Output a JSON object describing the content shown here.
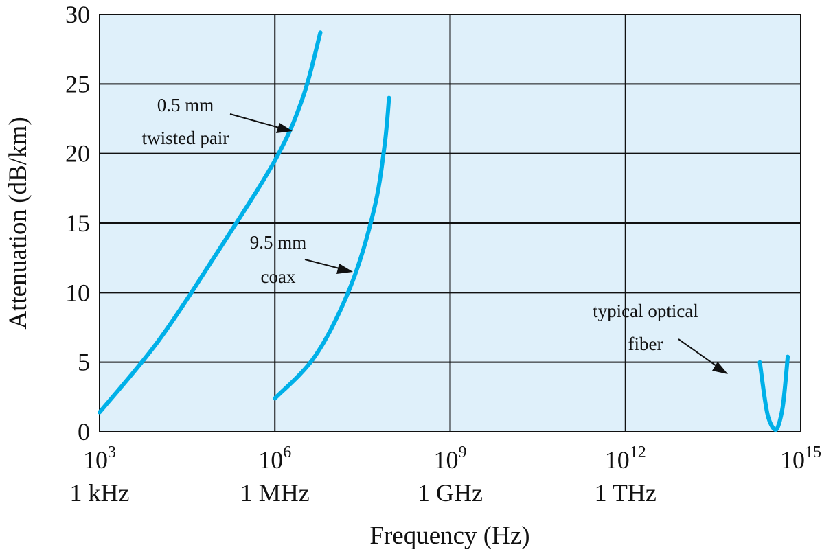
{
  "chart_data": {
    "type": "line",
    "title": "",
    "xlabel": "Frequency (Hz)",
    "ylabel": "Attenuation (dB/km)",
    "x_scale": "log",
    "xlim": [
      1000,
      1000000000000000
    ],
    "ylim": [
      0,
      30
    ],
    "grid": true,
    "plot_background": "#dff0fa",
    "line_color": "#00b0e8",
    "y_ticks": [
      "0",
      "5",
      "10",
      "15",
      "20",
      "25",
      "30"
    ],
    "x_ticks": [
      {
        "base": "10",
        "exp": "3",
        "name": "1 kHz"
      },
      {
        "base": "10",
        "exp": "6",
        "name": "1 MHz"
      },
      {
        "base": "10",
        "exp": "9",
        "name": "1 GHz"
      },
      {
        "base": "10",
        "exp": "12",
        "name": "1 THz"
      },
      {
        "base": "10",
        "exp": "15",
        "name": ""
      }
    ],
    "series": [
      {
        "points": [
          [
            1000,
            1.4
          ],
          [
            10000,
            6.5
          ],
          [
            100000,
            12.8
          ],
          [
            1000000,
            19.5
          ],
          [
            3000000,
            24.0
          ],
          [
            6000000,
            28.7
          ]
        ],
        "annotation": [
          "0.5 mm",
          "twisted pair"
        ]
      },
      {
        "points": [
          [
            1000000,
            2.4
          ],
          [
            5000000,
            5.5
          ],
          [
            20000000,
            10.5
          ],
          [
            50000000,
            16.0
          ],
          [
            75000000,
            20.5
          ],
          [
            90000000,
            24.0
          ]
        ],
        "annotation": [
          "9.5 mm",
          "coax"
        ]
      },
      {
        "points": [
          [
            200000000000000,
            5.0
          ],
          [
            240000000000000,
            2.5
          ],
          [
            280000000000000,
            1.0
          ],
          [
            350000000000000,
            0.2
          ],
          [
            410000000000000,
            0.4
          ],
          [
            500000000000000,
            2.0
          ],
          [
            600000000000000,
            5.4
          ]
        ],
        "annotation": [
          "typical optical",
          "fiber"
        ]
      }
    ]
  }
}
